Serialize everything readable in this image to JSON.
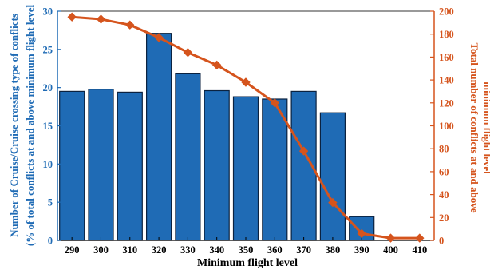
{
  "chart_data": {
    "type": "bar",
    "categories": [
      "290",
      "300",
      "310",
      "320",
      "330",
      "340",
      "350",
      "360",
      "370",
      "380",
      "390",
      "400",
      "410"
    ],
    "xlabel": "Minimum flight level",
    "series": [
      {
        "axis": "left",
        "type": "bar",
        "values": [
          19.5,
          19.8,
          19.4,
          27.1,
          21.8,
          19.6,
          18.8,
          18.5,
          19.5,
          16.7,
          3.1,
          null,
          null
        ]
      },
      {
        "axis": "right",
        "type": "line",
        "values": [
          195,
          193,
          188,
          177,
          164,
          153,
          138,
          120,
          78,
          33,
          6,
          2,
          2
        ]
      }
    ],
    "ylabel_left": [
      "Number of Cruise/Cruise crossing type of conflicts",
      "(% of total conflicts at and above minimum flight level"
    ],
    "ylabel_right": [
      "Total number of conflicts at and above",
      "minimum flight level"
    ],
    "ylim_left": [
      0,
      30
    ],
    "yticks_left": [
      "0",
      "5",
      "10",
      "15",
      "20",
      "25",
      "30"
    ],
    "ylim_right": [
      0,
      200
    ],
    "yticks_right": [
      "0",
      "20",
      "40",
      "60",
      "80",
      "100",
      "120",
      "140",
      "160",
      "180",
      "200"
    ],
    "grid": false,
    "legend": "none",
    "colors": {
      "bar": "#1f6bb5",
      "bar_edge": "#0b2240",
      "line": "#d5541d",
      "left_axis": "#1f6bb5",
      "right_axis": "#d5541d"
    }
  }
}
